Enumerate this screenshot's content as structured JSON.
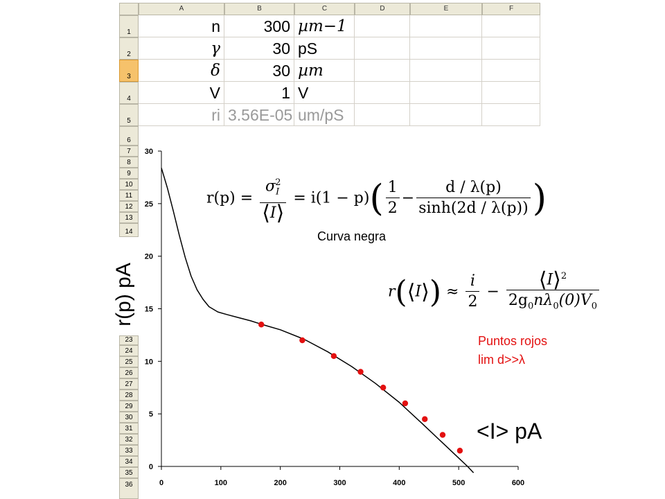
{
  "sheet": {
    "columns": [
      "A",
      "B",
      "C",
      "D",
      "E",
      "F"
    ],
    "rows": [
      "1",
      "2",
      "3",
      "4",
      "5",
      "6",
      "7",
      "8",
      "9",
      "10",
      "11",
      "12",
      "13",
      "14",
      "23",
      "24",
      "25",
      "26",
      "27",
      "28",
      "29",
      "30",
      "31",
      "32",
      "33",
      "34",
      "35",
      "36"
    ],
    "selected_row": "3",
    "cells": [
      {
        "a": "n",
        "b": "300",
        "c": "µm−1"
      },
      {
        "a": "γ",
        "b": "30",
        "c": "pS"
      },
      {
        "a": "δ",
        "b": "30",
        "c": "µm"
      },
      {
        "a": "V",
        "b": "1",
        "c": "V"
      },
      {
        "a": "ri",
        "b": "3.56E-05",
        "c": "um/pS"
      }
    ]
  },
  "chart_data": {
    "type": "line",
    "xlabel": "<I> pA",
    "ylabel": "r(p) pA",
    "xlim": [
      0,
      600
    ],
    "ylim": [
      0,
      30
    ],
    "xticks": [
      0,
      100,
      200,
      300,
      400,
      500,
      600
    ],
    "yticks": [
      0,
      5,
      10,
      15,
      20,
      25,
      30
    ],
    "grid": false,
    "series": [
      {
        "name": "Curva negra",
        "style": "line",
        "color": "#000000",
        "x": [
          0,
          10,
          20,
          30,
          40,
          50,
          60,
          70,
          80,
          95,
          110,
          130,
          150,
          170,
          200,
          240,
          280,
          320,
          360,
          400,
          440,
          470,
          500,
          515,
          525
        ],
        "y": [
          28.4,
          26.5,
          24.3,
          22.0,
          19.9,
          18.1,
          16.8,
          15.9,
          15.2,
          14.7,
          14.45,
          14.15,
          13.85,
          13.5,
          13.0,
          12.1,
          10.9,
          9.5,
          7.9,
          6.1,
          4.0,
          2.4,
          0.8,
          0.0,
          -0.6
        ]
      },
      {
        "name": "Puntos rojos lim d>>λ",
        "style": "scatter",
        "color": "#e31010",
        "x": [
          168,
          237,
          290,
          335,
          373,
          410,
          443,
          473,
          502
        ],
        "y": [
          13.5,
          12.0,
          10.5,
          9.0,
          7.5,
          6.0,
          4.5,
          3.0,
          1.5
        ]
      }
    ],
    "annotations": {
      "black_curve_label": "Curva negra",
      "red_points_label_line1": "Puntos rojos",
      "red_points_label_line2": "lim d>>λ"
    },
    "colors": {
      "black_curve": "#000000",
      "red_points": "#e31010",
      "red_label": "#e31010"
    }
  },
  "equations": {
    "eq1": {
      "lhs": "r(p) =",
      "frac1_num": "σ",
      "frac1_num_sub": "I",
      "frac1_num_sup": "2",
      "frac1_den": "I",
      "mid": "= i(1 − p)",
      "half_num": "1",
      "half_den": "2",
      "minus": "−",
      "frac2_num": "d / λ(p)",
      "frac2_den": "sinh(2d / λ(p))"
    },
    "eq2": {
      "lhs_r": "r",
      "lhs_arg": "I",
      "approx": "≈",
      "frac1_num": "i",
      "frac1_den": "2",
      "minus": "−",
      "frac2_num": "I",
      "frac2_num_sup": "2",
      "frac2_den_pre": "2g",
      "frac2_den_sub0": "0",
      "frac2_den_mid": "nλ",
      "frac2_den_sub1": "0",
      "frac2_den_arg": "(0)V",
      "frac2_den_sub2": "0"
    }
  }
}
